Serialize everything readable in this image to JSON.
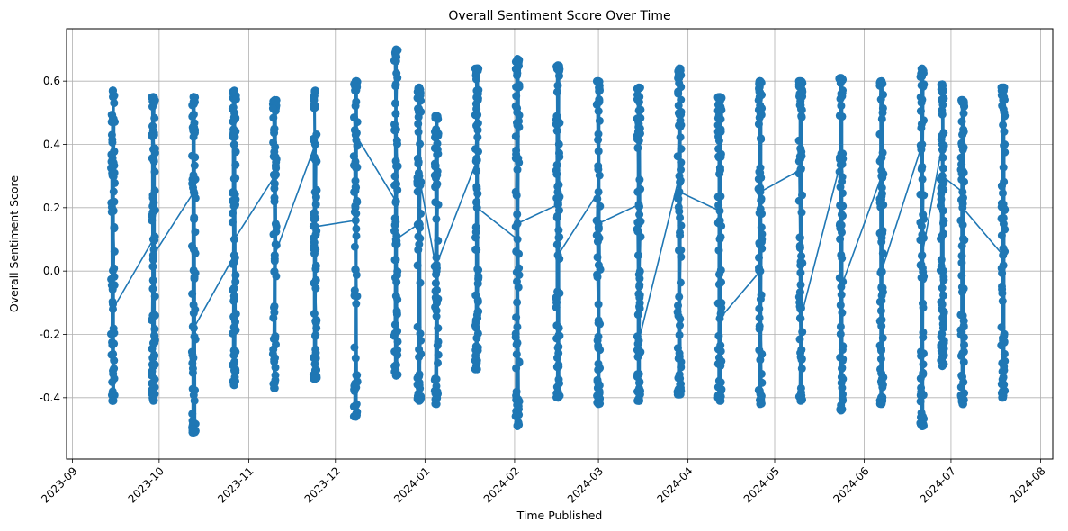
{
  "chart_data": {
    "type": "line",
    "title": "Overall Sentiment Score Over Time",
    "xlabel": "Time Published",
    "ylabel": "Overall Sentiment Score",
    "x_range": [
      "2023-09-01",
      "2024-08-01"
    ],
    "ylim": [
      -0.5,
      0.7
    ],
    "x_ticks": [
      "2023-09",
      "2023-10",
      "2023-11",
      "2023-12",
      "2024-01",
      "2024-02",
      "2024-03",
      "2024-04",
      "2024-05",
      "2024-06",
      "2024-07",
      "2024-08"
    ],
    "y_ticks": [
      -0.4,
      -0.2,
      0.0,
      0.2,
      0.4,
      0.6
    ],
    "grid": true,
    "marker": "circle",
    "color": "#1f77b4",
    "clusters": [
      {
        "date": "2023-09-15",
        "min": -0.41,
        "max": 0.57,
        "start": 0.55,
        "end": -0.12
      },
      {
        "date": "2023-09-29",
        "min": -0.41,
        "max": 0.55,
        "start": 0.1,
        "end": 0.05
      },
      {
        "date": "2023-10-13",
        "min": -0.51,
        "max": 0.55,
        "start": 0.25,
        "end": -0.18
      },
      {
        "date": "2023-10-27",
        "min": -0.36,
        "max": 0.57,
        "start": 0.05,
        "end": 0.1
      },
      {
        "date": "2023-11-10",
        "min": -0.37,
        "max": 0.54,
        "start": 0.3,
        "end": 0.05
      },
      {
        "date": "2023-11-24",
        "min": -0.34,
        "max": 0.57,
        "start": 0.4,
        "end": 0.14
      },
      {
        "date": "2023-12-08",
        "min": -0.46,
        "max": 0.6,
        "start": 0.16,
        "end": 0.43
      },
      {
        "date": "2023-12-22",
        "min": -0.33,
        "max": 0.7,
        "start": 0.22,
        "end": 0.1
      },
      {
        "date": "2023-12-30",
        "min": -0.41,
        "max": 0.58,
        "start": 0.15,
        "end": 0.3
      },
      {
        "date": "2024-01-05",
        "min": -0.42,
        "max": 0.49,
        "start": 0.0,
        "end": 0.02
      },
      {
        "date": "2024-01-19",
        "min": -0.31,
        "max": 0.64,
        "start": 0.35,
        "end": 0.2
      },
      {
        "date": "2024-02-02",
        "min": -0.49,
        "max": 0.67,
        "start": 0.1,
        "end": 0.15
      },
      {
        "date": "2024-02-16",
        "min": -0.4,
        "max": 0.65,
        "start": 0.21,
        "end": 0.05
      },
      {
        "date": "2024-03-01",
        "min": -0.42,
        "max": 0.6,
        "start": 0.25,
        "end": 0.15
      },
      {
        "date": "2024-03-15",
        "min": -0.41,
        "max": 0.58,
        "start": 0.21,
        "end": -0.22
      },
      {
        "date": "2024-03-29",
        "min": -0.39,
        "max": 0.64,
        "start": 0.3,
        "end": 0.25
      },
      {
        "date": "2024-04-12",
        "min": -0.41,
        "max": 0.55,
        "start": 0.19,
        "end": -0.15
      },
      {
        "date": "2024-04-26",
        "min": -0.42,
        "max": 0.6,
        "start": 0.0,
        "end": 0.25
      },
      {
        "date": "2024-05-10",
        "min": -0.41,
        "max": 0.6,
        "start": 0.32,
        "end": -0.15
      },
      {
        "date": "2024-05-24",
        "min": -0.44,
        "max": 0.61,
        "start": 0.35,
        "end": -0.05
      },
      {
        "date": "2024-06-07",
        "min": -0.42,
        "max": 0.6,
        "start": 0.3,
        "end": 0.0
      },
      {
        "date": "2024-06-21",
        "min": -0.49,
        "max": 0.64,
        "start": 0.4,
        "end": 0.05
      },
      {
        "date": "2024-06-28",
        "min": -0.3,
        "max": 0.59,
        "start": 0.4,
        "end": 0.3
      },
      {
        "date": "2024-07-05",
        "min": -0.42,
        "max": 0.54,
        "start": 0.25,
        "end": 0.2
      },
      {
        "date": "2024-07-19",
        "min": -0.4,
        "max": 0.58,
        "start": 0.05,
        "end": -0.22
      }
    ]
  }
}
